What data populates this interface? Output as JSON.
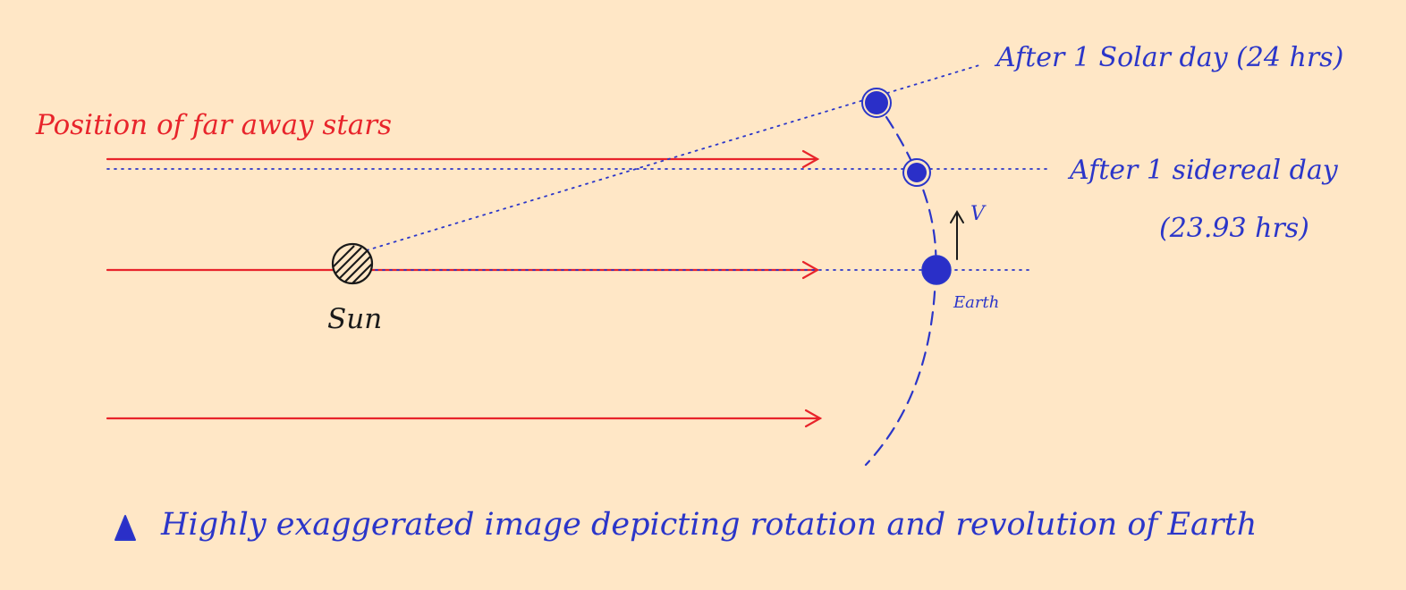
{
  "labels": {
    "far_stars": "Position of far away stars",
    "sun": "Sun",
    "earth": "Earth",
    "velocity": "V",
    "solar_day": "After 1 Solar day (24 hrs)",
    "sidereal_day_line1": "After 1 sidereal day",
    "sidereal_day_line2": "(23.93 hrs)",
    "caption": "Highly exaggerated image depicting rotation and revolution of Earth"
  },
  "colors": {
    "background": "#ffe7c6",
    "stars_arrows": "#e8242b",
    "earth_orbit": "#2b36c9",
    "earth_fill": "#2a2fc8",
    "sun": "#1a1a1a"
  },
  "icons": {
    "caption_marker": "triangle-marker-icon",
    "sun": "hatched-circle-icon"
  }
}
